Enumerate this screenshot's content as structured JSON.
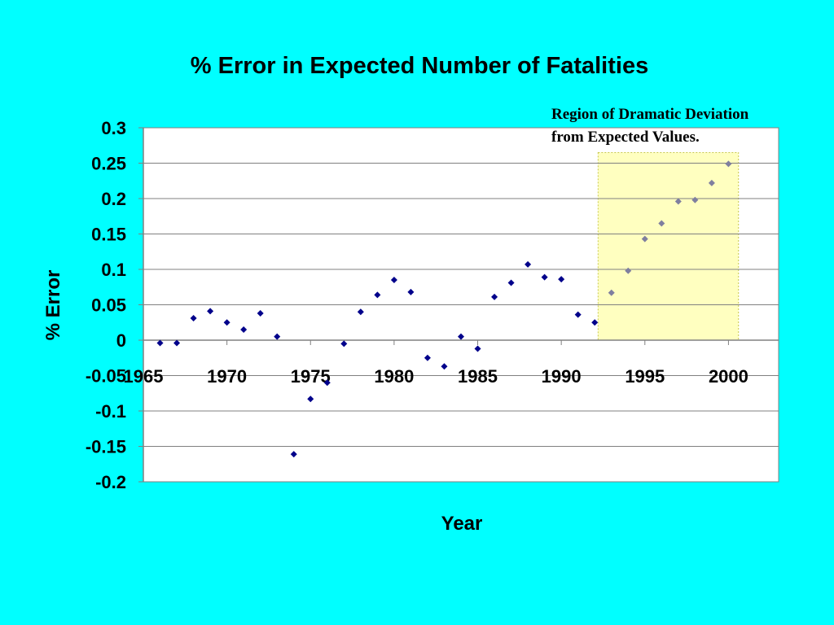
{
  "chart_data": {
    "type": "scatter",
    "title": "% Error in Expected Number of Fatalities",
    "xlabel": "Year",
    "ylabel": "% Error",
    "xlim": [
      1965,
      2003
    ],
    "ylim": [
      -0.2,
      0.3
    ],
    "x_ticks": [
      "1965",
      "1970",
      "1975",
      "1980",
      "1985",
      "1990",
      "1995",
      "2000"
    ],
    "y_ticks": [
      "0.3",
      "0.25",
      "0.2",
      "0.15",
      "0.1",
      "0.05",
      "0",
      "-0.05",
      "-0.1",
      "-0.15",
      "-0.2"
    ],
    "grid": "horizontal",
    "legend": "none",
    "annotation": {
      "lines": [
        "Region of Dramatic Deviation",
        "from Expected Values."
      ],
      "x_range": [
        1992.2,
        2000.6
      ],
      "y_range": [
        0.0,
        0.265
      ]
    },
    "series": [
      {
        "color": "#00008b",
        "points": [
          [
            1966,
            -0.004
          ],
          [
            1967,
            -0.004
          ],
          [
            1968,
            0.031
          ],
          [
            1969,
            0.041
          ],
          [
            1970,
            0.025
          ],
          [
            1971,
            0.015
          ],
          [
            1972,
            0.038
          ],
          [
            1973,
            0.005
          ],
          [
            1974,
            -0.161
          ],
          [
            1975,
            -0.083
          ],
          [
            1976,
            -0.06
          ],
          [
            1977,
            -0.005
          ],
          [
            1978,
            0.04
          ],
          [
            1979,
            0.064
          ],
          [
            1980,
            0.085
          ],
          [
            1981,
            0.068
          ],
          [
            1982,
            -0.025
          ],
          [
            1983,
            -0.037
          ],
          [
            1984,
            0.005
          ],
          [
            1985,
            -0.012
          ],
          [
            1986,
            0.061
          ],
          [
            1987,
            0.081
          ],
          [
            1988,
            0.107
          ],
          [
            1989,
            0.089
          ],
          [
            1990,
            0.086
          ],
          [
            1991,
            0.036
          ],
          [
            1992,
            0.025
          ]
        ]
      },
      {
        "color": "#7f7f9f",
        "points": [
          [
            1993,
            0.067
          ],
          [
            1994,
            0.098
          ],
          [
            1995,
            0.143
          ],
          [
            1996,
            0.165
          ],
          [
            1997,
            0.196
          ],
          [
            1998,
            0.198
          ],
          [
            1999,
            0.222
          ],
          [
            2000,
            0.249
          ]
        ]
      }
    ]
  },
  "colors": {
    "background": "#00ffff",
    "plot_area": "#ffffff",
    "highlight": "#ffffc0",
    "highlight_border": "#c8c850"
  }
}
